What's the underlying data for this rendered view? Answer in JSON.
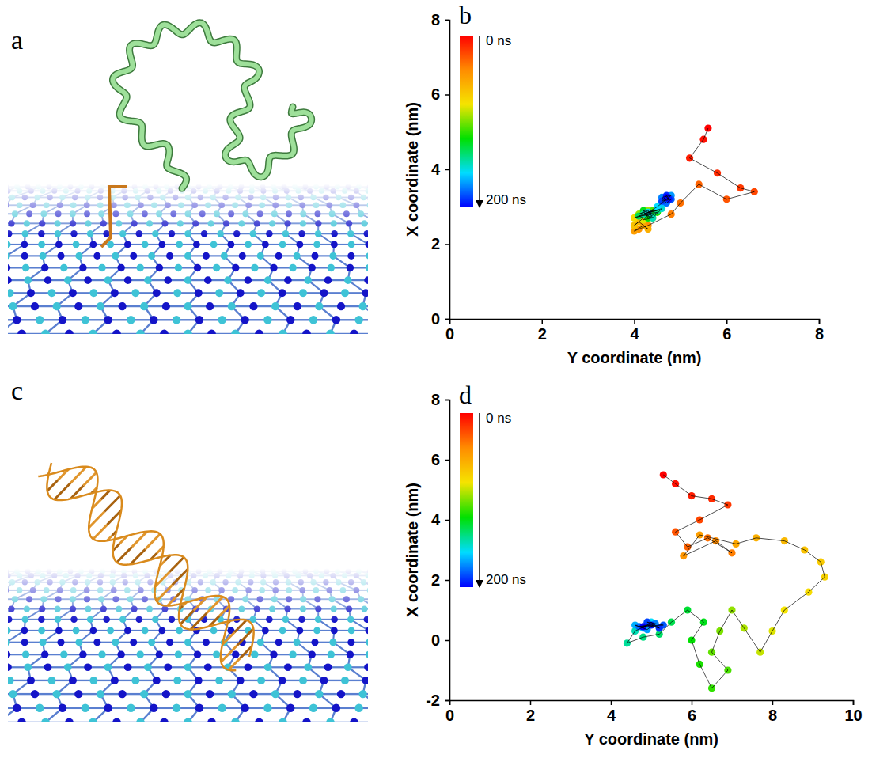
{
  "images": [
    {
      "panel_label": "a"
    },
    {
      "panel_label": "c"
    }
  ],
  "chart_data": [
    {
      "type": "scatter",
      "panel_label": "b",
      "x_label": "Y coordinate (nm)",
      "y_label": "X coordinate (nm)",
      "marker": "circle",
      "line_style": "solid",
      "xlim": [
        0,
        8
      ],
      "xticks": [
        0,
        2,
        4,
        6,
        8
      ],
      "ylim": [
        0,
        8
      ],
      "yticks": [
        0,
        2,
        4,
        6,
        8
      ],
      "color_range": [
        0,
        200
      ],
      "color_ticks": [
        {
          "value": 0,
          "label": "0 ns"
        },
        {
          "value": 200,
          "label": "200 ns"
        }
      ],
      "time": [
        0,
        4,
        8,
        12,
        16,
        20,
        24,
        28,
        32,
        36,
        40,
        44,
        48,
        52,
        56,
        60,
        64,
        68,
        72,
        76,
        80,
        84,
        88,
        92,
        96,
        100,
        104,
        108,
        112,
        116,
        120,
        124,
        128,
        132,
        136,
        140,
        144,
        148,
        152,
        156,
        160,
        164,
        168,
        172,
        176,
        180,
        184,
        188,
        192,
        196,
        200
      ],
      "x": [
        5.6,
        5.5,
        5.2,
        5.8,
        6.3,
        6.6,
        6.0,
        5.4,
        5.0,
        4.8,
        4.3,
        4.1,
        4.0,
        4.2,
        4.3,
        4.1,
        4.0,
        4.2,
        4.1,
        4.0,
        4.3,
        4.2,
        4.4,
        4.3,
        4.1,
        4.2,
        4.3,
        4.4,
        4.2,
        4.5,
        4.3,
        4.2,
        4.4,
        4.1,
        4.3,
        4.5,
        4.2,
        4.4,
        4.6,
        4.3,
        4.5,
        4.6,
        4.7,
        4.8,
        4.6,
        4.7,
        4.8,
        4.6,
        4.7,
        4.75,
        4.7
      ],
      "values": [
        5.1,
        4.8,
        4.3,
        3.9,
        3.5,
        3.4,
        3.2,
        3.6,
        3.1,
        2.8,
        2.5,
        2.4,
        2.35,
        2.5,
        2.4,
        2.6,
        2.5,
        2.7,
        2.75,
        2.7,
        2.8,
        2.65,
        2.7,
        2.9,
        2.8,
        2.85,
        2.75,
        2.9,
        2.8,
        2.85,
        2.7,
        2.9,
        2.8,
        2.75,
        2.85,
        2.9,
        2.8,
        2.7,
        2.95,
        2.85,
        3.0,
        3.1,
        3.2,
        3.3,
        3.25,
        3.1,
        3.2,
        3.15,
        3.3,
        3.2,
        3.25
      ]
    },
    {
      "type": "scatter",
      "panel_label": "d",
      "x_label": "Y coordinate (nm)",
      "y_label": "X coordinate (nm)",
      "marker": "circle",
      "line_style": "solid",
      "xlim": [
        0,
        10
      ],
      "xticks": [
        0,
        2,
        4,
        6,
        8,
        10
      ],
      "ylim": [
        -2,
        8
      ],
      "yticks": [
        -2,
        0,
        2,
        4,
        6,
        8
      ],
      "color_range": [
        0,
        200
      ],
      "color_ticks": [
        {
          "value": 0,
          "label": "0 ns"
        },
        {
          "value": 200,
          "label": "200 ns"
        }
      ],
      "time": [
        0,
        4,
        8,
        12,
        16,
        20,
        24,
        28,
        32,
        36,
        40,
        44,
        48,
        52,
        56,
        60,
        64,
        68,
        72,
        76,
        80,
        84,
        88,
        92,
        96,
        100,
        104,
        108,
        112,
        116,
        120,
        124,
        128,
        132,
        136,
        140,
        144,
        148,
        152,
        156,
        160,
        164,
        168,
        172,
        176,
        180,
        184,
        188,
        192,
        196,
        200
      ],
      "x": [
        5.3,
        5.6,
        6.0,
        6.5,
        6.9,
        6.2,
        5.6,
        5.9,
        6.4,
        7.0,
        6.6,
        5.8,
        6.2,
        7.1,
        7.6,
        8.3,
        8.8,
        9.2,
        9.3,
        8.9,
        8.3,
        8.0,
        7.7,
        7.3,
        7.0,
        6.7,
        6.5,
        6.9,
        6.5,
        6.2,
        6.0,
        6.3,
        5.9,
        5.5,
        5.2,
        4.8,
        4.4,
        4.6,
        4.9,
        5.2,
        5.0,
        4.8,
        4.6,
        4.9,
        5.1,
        4.7,
        5.3,
        4.9,
        5.2,
        5.0,
        4.8
      ],
      "values": [
        5.5,
        5.2,
        4.8,
        4.7,
        4.5,
        4.0,
        3.6,
        3.1,
        3.4,
        2.9,
        3.3,
        2.8,
        3.5,
        3.2,
        3.4,
        3.3,
        3.0,
        2.6,
        2.1,
        1.6,
        1.0,
        0.3,
        -0.4,
        0.4,
        1.0,
        0.3,
        -0.4,
        -1.0,
        -1.6,
        -0.8,
        0.0,
        0.6,
        1.0,
        0.6,
        0.2,
        0.1,
        -0.1,
        0.3,
        0.5,
        0.4,
        0.6,
        0.4,
        0.5,
        0.35,
        0.55,
        0.45,
        0.5,
        0.6,
        0.4,
        0.5,
        0.45
      ]
    }
  ]
}
